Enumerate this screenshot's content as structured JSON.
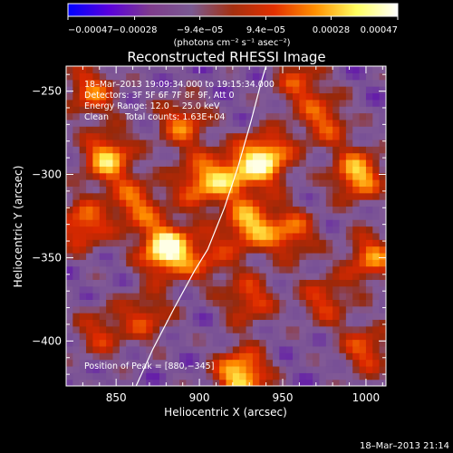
{
  "chart_data": {
    "type": "heatmap",
    "title": "Reconstructed RHESSI Image",
    "xlabel": "Heliocentric X (arcsec)",
    "ylabel": "Heliocentric Y (arcsec)",
    "xlim": [
      820,
      1012
    ],
    "ylim": [
      -427,
      -235
    ],
    "x_ticks": [
      850,
      900,
      950,
      1000
    ],
    "x_tick_labels": [
      "850",
      "900",
      "950",
      "1000"
    ],
    "y_ticks": [
      -250,
      -300,
      -350,
      -400
    ],
    "y_tick_labels": [
      "−250",
      "−300",
      "−350",
      "−400"
    ],
    "colorbar": {
      "range": [
        -0.00047,
        0.00047
      ],
      "tick_values": [
        -0.00047,
        -0.00028,
        -9.4e-05,
        9.4e-05,
        0.00028,
        0.00047
      ],
      "tick_labels": [
        "−0.00047",
        "−0.00028",
        "−9.4e−05",
        "9.4e−05",
        "0.00028",
        "0.00047"
      ],
      "unit_label": "(photons cm⁻² s⁻¹ asec⁻²)",
      "colormap": [
        "#0000ff",
        "#5a00dc",
        "#7f3c8c",
        "#7a5a92",
        "#a43010",
        "#e23000",
        "#ff9000",
        "#ffff60",
        "#ffffff"
      ]
    },
    "annotations": [
      "18–Mar–2013 19:09:34.000 to 19:15:34.000",
      "Detectors: 3F 5F 6F 7F 8F 9F, Att 0",
      "Energy Range: 12.0 − 25.0 keV",
      "Clean      Total counts: 1.63E+04"
    ],
    "peak_label": "Position of Peak = [880,−345]",
    "peak": {
      "x": 880,
      "y": -345
    },
    "hot_spots": [
      {
        "x": 880,
        "y": -345,
        "level": 1.0
      },
      {
        "x": 845,
        "y": -290,
        "level": 0.75
      },
      {
        "x": 830,
        "y": -330,
        "level": 0.6
      },
      {
        "x": 862,
        "y": -318,
        "level": 0.55
      },
      {
        "x": 900,
        "y": -305,
        "level": 0.6
      },
      {
        "x": 890,
        "y": -270,
        "level": 0.55
      },
      {
        "x": 920,
        "y": -300,
        "level": 0.55
      },
      {
        "x": 940,
        "y": -290,
        "level": 0.85
      },
      {
        "x": 930,
        "y": -330,
        "level": 0.7
      },
      {
        "x": 955,
        "y": -335,
        "level": 0.55
      },
      {
        "x": 975,
        "y": -268,
        "level": 0.5
      },
      {
        "x": 995,
        "y": -300,
        "level": 0.75
      },
      {
        "x": 1003,
        "y": -350,
        "level": 0.6
      },
      {
        "x": 1000,
        "y": -405,
        "level": 0.5
      },
      {
        "x": 975,
        "y": -375,
        "level": 0.45
      },
      {
        "x": 925,
        "y": -420,
        "level": 0.85
      },
      {
        "x": 930,
        "y": -375,
        "level": 0.5
      },
      {
        "x": 840,
        "y": -395,
        "level": 0.4
      },
      {
        "x": 868,
        "y": -385,
        "level": 0.45
      },
      {
        "x": 905,
        "y": -350,
        "level": 0.4
      },
      {
        "x": 960,
        "y": -245,
        "level": 0.45
      },
      {
        "x": 835,
        "y": -250,
        "level": 0.55
      }
    ],
    "limb_curve": [
      {
        "x": 862,
        "y": -427
      },
      {
        "x": 872,
        "y": -405
      },
      {
        "x": 885,
        "y": -380
      },
      {
        "x": 897,
        "y": -358
      },
      {
        "x": 905,
        "y": -345
      },
      {
        "x": 915,
        "y": -320
      },
      {
        "x": 923,
        "y": -296
      },
      {
        "x": 931,
        "y": -268
      },
      {
        "x": 937,
        "y": -245
      },
      {
        "x": 940,
        "y": -235
      }
    ]
  },
  "timestamp": "18–Mar–2013 21:14"
}
